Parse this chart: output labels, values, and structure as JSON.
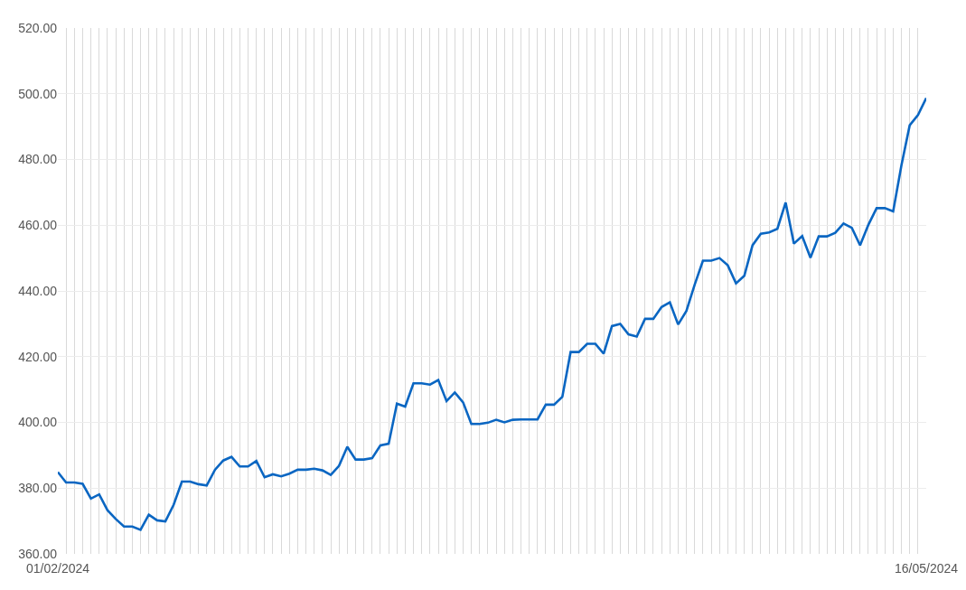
{
  "chart_data": {
    "type": "line",
    "categories": [
      "01/02/2024",
      null,
      null,
      null,
      null,
      null,
      null,
      null,
      null,
      null,
      null,
      null,
      null,
      null,
      null,
      null,
      null,
      null,
      null,
      null,
      null,
      null,
      null,
      null,
      null,
      null,
      null,
      null,
      null,
      null,
      null,
      null,
      null,
      null,
      null,
      null,
      null,
      null,
      null,
      null,
      null,
      null,
      null,
      null,
      null,
      null,
      null,
      null,
      null,
      null,
      null,
      null,
      null,
      null,
      null,
      null,
      null,
      null,
      null,
      null,
      null,
      null,
      null,
      null,
      null,
      null,
      null,
      null,
      null,
      null,
      null,
      null,
      null,
      null,
      null,
      null,
      null,
      null,
      null,
      null,
      null,
      null,
      null,
      null,
      null,
      null,
      null,
      null,
      null,
      null,
      null,
      null,
      null,
      null,
      null,
      null,
      null,
      null,
      null,
      null,
      null,
      null,
      null,
      null,
      null,
      "16/05/2024"
    ],
    "series": [
      {
        "color": "#0a66c2",
        "values": [
          384.9,
          381.7,
          381.7,
          381.3,
          376.8,
          378.1,
          373.3,
          370.6,
          368.3,
          368.3,
          367.3,
          371.9,
          370.2,
          369.9,
          374.9,
          382.0,
          382.0,
          381.2,
          380.8,
          385.6,
          388.4,
          389.5,
          386.6,
          386.6,
          388.3,
          383.3,
          384.2,
          383.6,
          384.4,
          385.6,
          385.6,
          385.9,
          385.4,
          384.0,
          386.8,
          392.6,
          388.7,
          388.7,
          389.1,
          393.0,
          393.5,
          405.7,
          404.8,
          411.9,
          411.9,
          411.5,
          412.9,
          406.5,
          409.1,
          406.1,
          399.5,
          399.5,
          399.9,
          400.8,
          400.0,
          400.8,
          400.9,
          400.9,
          400.9,
          405.4,
          405.4,
          407.8,
          421.4,
          421.4,
          423.9,
          423.9,
          420.9,
          429.3,
          430.0,
          426.8,
          426.1,
          431.5,
          431.5,
          435.1,
          436.5,
          429.8,
          433.9,
          441.9,
          449.2,
          449.2,
          450.0,
          447.8,
          442.3,
          444.6,
          453.9,
          457.4,
          457.8,
          458.9,
          466.9,
          454.4,
          456.7,
          450.1,
          456.6,
          456.6,
          457.7,
          460.5,
          459.2,
          453.9,
          460.1,
          465.2,
          465.2,
          464.2,
          478.2,
          490.4,
          493.5,
          498.7
        ]
      }
    ],
    "ylim": [
      360,
      520
    ],
    "yticks": [
      {
        "value": 360,
        "label": "360.00"
      },
      {
        "value": 380,
        "label": "380.00"
      },
      {
        "value": 400,
        "label": "400.00"
      },
      {
        "value": 420,
        "label": "420.00"
      },
      {
        "value": 440,
        "label": "440.00"
      },
      {
        "value": 460,
        "label": "460.00"
      },
      {
        "value": 480,
        "label": "480.00"
      },
      {
        "value": 500,
        "label": "500.00"
      },
      {
        "value": 520,
        "label": "520.00"
      }
    ],
    "grid": true,
    "marker": "none",
    "line_style": "solid"
  }
}
